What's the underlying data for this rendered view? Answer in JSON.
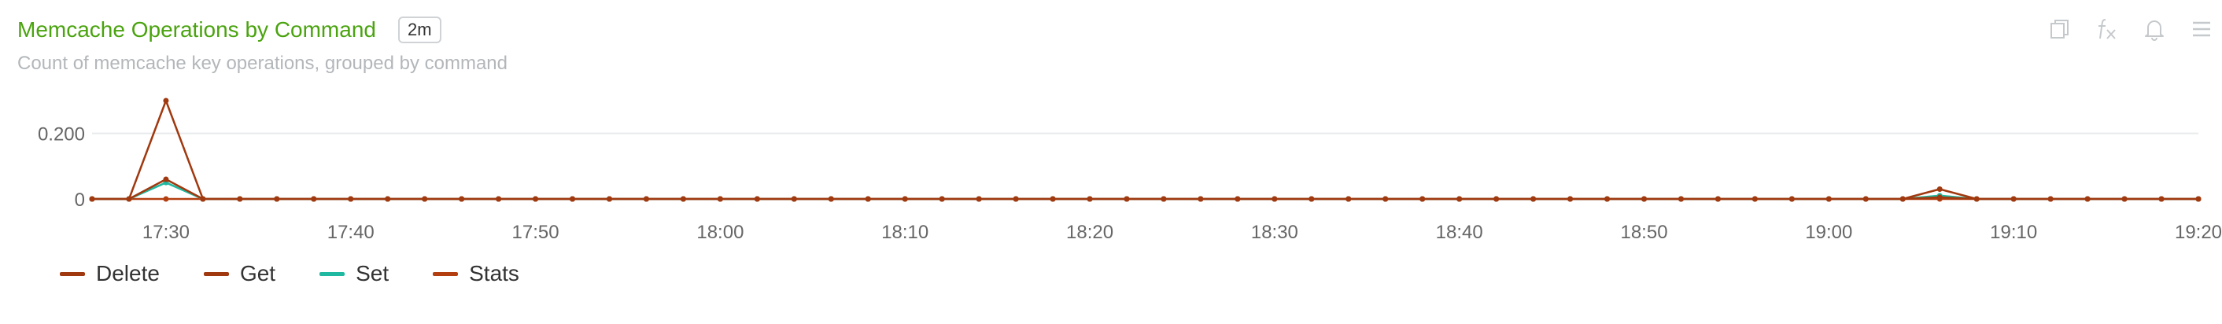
{
  "panel": {
    "title": "Memcache Operations by Command",
    "badge": "2m",
    "subtitle": "Count of memcache key operations, grouped by command",
    "toolbar": [
      {
        "icon": "copy-icon"
      },
      {
        "icon": "fx-icon"
      },
      {
        "icon": "bell-icon"
      },
      {
        "icon": "menu-icon"
      }
    ]
  },
  "chart_data": {
    "type": "line",
    "x_tick_labels": [
      "17:30",
      "17:40",
      "17:50",
      "18:00",
      "18:10",
      "18:20",
      "18:30",
      "18:40",
      "18:50",
      "19:00",
      "19:10",
      "19:20"
    ],
    "x_start": "17:26",
    "x_end": "19:20",
    "x_step_minutes": 2,
    "y_tick_labels": [
      "0",
      "0.200"
    ],
    "y_ticks": [
      0,
      0.2
    ],
    "ylim": [
      0,
      0.3
    ],
    "grid": true,
    "legend_position": "bottom-left",
    "series": [
      {
        "name": "Delete",
        "color": "#a0390f",
        "points": [
          [
            "17:26",
            0
          ],
          [
            "17:28",
            0
          ],
          [
            "17:30",
            0.3
          ],
          [
            "17:32",
            0
          ],
          [
            "19:06",
            0.03
          ],
          [
            "19:08",
            0
          ],
          [
            "19:20",
            0
          ]
        ]
      },
      {
        "name": "Get",
        "color": "#a0390f",
        "points": [
          [
            "17:26",
            0
          ],
          [
            "17:28",
            0
          ],
          [
            "17:30",
            0.06
          ],
          [
            "17:32",
            0
          ],
          [
            "19:06",
            0.005
          ],
          [
            "19:08",
            0
          ],
          [
            "19:20",
            0
          ]
        ]
      },
      {
        "name": "Set",
        "color": "#1fb8a0",
        "points": [
          [
            "17:26",
            0
          ],
          [
            "17:28",
            0
          ],
          [
            "17:30",
            0.05
          ],
          [
            "17:32",
            0
          ],
          [
            "19:06",
            0.01
          ],
          [
            "19:08",
            0
          ],
          [
            "19:20",
            0
          ]
        ]
      },
      {
        "name": "Stats",
        "color": "#b33f10",
        "points": [
          [
            "17:26",
            0
          ],
          [
            "17:28",
            0
          ],
          [
            "17:30",
            0
          ],
          [
            "17:32",
            0
          ],
          [
            "19:06",
            0
          ],
          [
            "19:08",
            0
          ],
          [
            "19:20",
            0
          ]
        ]
      }
    ]
  }
}
